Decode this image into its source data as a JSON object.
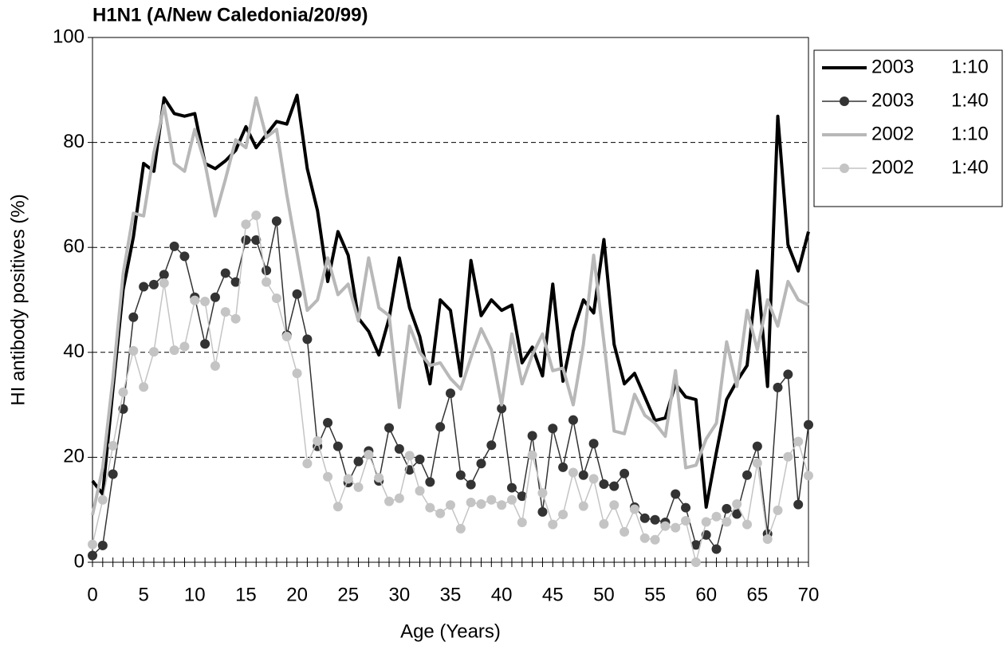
{
  "chart_data": {
    "type": "line",
    "title": "H1N1 (A/New Caledonia/20/99)",
    "x_label": "Age (Years)",
    "y_label": "HI antibody positives (%)",
    "x": [
      0,
      1,
      2,
      3,
      4,
      5,
      6,
      7,
      8,
      9,
      10,
      11,
      12,
      13,
      14,
      15,
      16,
      17,
      18,
      19,
      20,
      21,
      22,
      23,
      24,
      25,
      26,
      27,
      28,
      29,
      30,
      31,
      32,
      33,
      34,
      35,
      36,
      37,
      38,
      39,
      40,
      41,
      42,
      43,
      44,
      45,
      46,
      47,
      48,
      49,
      50,
      51,
      52,
      53,
      54,
      55,
      56,
      57,
      58,
      59,
      60,
      61,
      62,
      63,
      64,
      65,
      66,
      67,
      68,
      69,
      70
    ],
    "series": [
      {
        "name": "2003 1:10",
        "color": "#000000",
        "line_width": 4,
        "marker": false,
        "values": [
          15.5,
          13,
          33,
          52,
          62,
          76,
          74.5,
          88.5,
          85.5,
          85,
          85.5,
          76,
          75,
          76.5,
          78.5,
          83,
          79,
          81.5,
          84,
          83.5,
          89,
          75,
          67,
          53.5,
          63,
          58.5,
          46.5,
          44,
          39.5,
          46.5,
          58,
          48.5,
          43,
          34,
          50,
          48,
          35.5,
          57.5,
          47,
          50,
          48,
          49,
          38,
          41,
          35.5,
          53,
          34.5,
          44,
          50,
          47.5,
          61.5,
          41.5,
          34,
          36,
          31.5,
          27,
          27.5,
          34,
          31.5,
          31,
          10.5,
          21,
          31,
          34.5,
          37.5,
          55.5,
          33.5,
          85,
          60.5,
          55.5,
          63
        ]
      },
      {
        "name": "2003 1:40",
        "color": "#333333",
        "line_width": 1.5,
        "marker": true,
        "values": [
          1.3,
          3.2,
          16.8,
          29.2,
          46.7,
          52.5,
          52.9,
          54.8,
          60.2,
          58.3,
          50.5,
          41.6,
          50.5,
          55.1,
          53.4,
          61.4,
          61.4,
          55.6,
          65,
          43.3,
          51.1,
          42.5,
          22.1,
          26.6,
          22.1,
          15.2,
          19.2,
          21.2,
          15.5,
          25.6,
          21.6,
          17.6,
          19.6,
          15.3,
          25.8,
          32.2,
          16.6,
          14.8,
          18.8,
          22.3,
          29.3,
          14.2,
          12.6,
          24.1,
          9.6,
          25.5,
          18.1,
          27.1,
          16.6,
          22.6,
          14.9,
          14.5,
          16.9,
          10.5,
          8.4,
          8.1,
          7.6,
          13,
          10.4,
          3.3,
          5.2,
          2.5,
          10.2,
          9.2,
          16.6,
          22.1,
          5.4,
          33.3,
          35.8,
          11,
          26.2
        ]
      },
      {
        "name": "2002 1:10",
        "color": "#b8b8b8",
        "line_width": 4,
        "marker": false,
        "values": [
          9,
          18,
          35,
          55,
          66.5,
          66,
          78,
          87,
          76,
          74.5,
          82.5,
          76,
          66,
          73,
          80.5,
          79,
          88.5,
          81,
          82.5,
          70,
          59,
          48,
          50,
          58,
          51,
          53,
          46,
          58,
          48.5,
          47,
          29.5,
          45,
          40,
          37.5,
          38,
          35,
          33,
          39,
          44.5,
          40.5,
          30,
          43.5,
          34,
          39.5,
          43.5,
          36.5,
          37,
          30,
          41.5,
          58.5,
          42,
          25,
          24.5,
          32,
          28,
          26.5,
          24,
          36.5,
          18,
          18.5,
          23.5,
          26.5,
          42,
          33.5,
          48,
          40.5,
          50,
          45,
          53.5,
          50,
          49
        ]
      },
      {
        "name": "2002 1:40",
        "color": "#c4c4c4",
        "line_width": 1.5,
        "marker": true,
        "values": [
          3.4,
          11.9,
          22.2,
          32.4,
          40.3,
          33.4,
          40.1,
          53.2,
          40.4,
          41.1,
          49.9,
          49.7,
          37.4,
          47.7,
          46.4,
          64.4,
          66.1,
          53.4,
          50.3,
          43,
          36,
          18.8,
          23.1,
          16.3,
          10.6,
          15.9,
          14.3,
          20.5,
          16.1,
          11.6,
          12.2,
          20.3,
          13.6,
          10.4,
          9.3,
          10.9,
          6.4,
          11.4,
          11.1,
          11.9,
          10.9,
          11.9,
          7.6,
          20.4,
          13.2,
          7.2,
          9.1,
          17.1,
          10.7,
          15.9,
          7.3,
          10.9,
          5.8,
          10.1,
          4.6,
          4.3,
          6.9,
          6.6,
          7.9,
          0,
          7.7,
          8.7,
          7.7,
          11.1,
          7.2,
          18.9,
          4.4,
          9.9,
          20.1,
          23,
          16.5
        ]
      }
    ],
    "xlim": [
      0,
      70
    ],
    "xticks": [
      0,
      5,
      10,
      15,
      20,
      25,
      30,
      35,
      40,
      45,
      50,
      55,
      60,
      65,
      70
    ],
    "ylim": [
      0,
      100
    ],
    "yticks": [
      0,
      20,
      40,
      60,
      80,
      100
    ],
    "grid": true,
    "legend": "top-right"
  }
}
